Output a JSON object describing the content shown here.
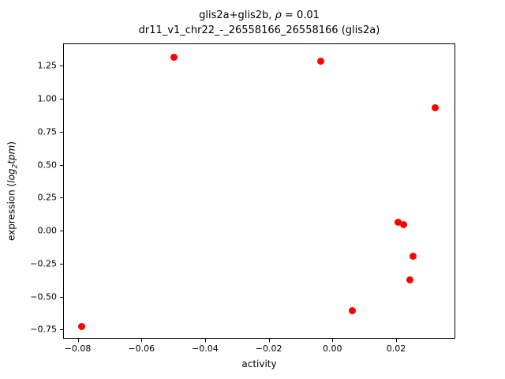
{
  "chart_data": {
    "type": "scatter",
    "title": {
      "prefix": "glis2a+glis2b, ",
      "rho": "ρ",
      "suffix": " = 0.01"
    },
    "subtitle": "dr11_v1_chr22_-_26558166_26558166 (glis2a)",
    "xlabel": "activity",
    "ylabel": {
      "prefix": "expression (",
      "func": "log",
      "sub": "2",
      "var": "tpm",
      "suffix": ")"
    },
    "legend": "none",
    "grid": false,
    "marker_color": "#ff0000",
    "xlim": [
      -0.0846,
      0.0386
    ],
    "ylim": [
      -0.82,
      1.42
    ],
    "xticks": {
      "values": [
        -0.08,
        -0.06,
        -0.04,
        -0.02,
        0.0,
        0.02
      ],
      "labels": [
        "−0.08",
        "−0.06",
        "−0.04",
        "−0.02",
        "0.00",
        "0.02"
      ]
    },
    "yticks": {
      "values": [
        -0.75,
        -0.5,
        -0.25,
        0.0,
        0.25,
        0.5,
        0.75,
        1.0,
        1.25
      ],
      "labels": [
        "−0.75",
        "−0.50",
        "−0.25",
        "0.00",
        "0.25",
        "0.50",
        "0.75",
        "1.00",
        "1.25"
      ]
    },
    "points": [
      [
        -0.079,
        -0.72
      ],
      [
        -0.05,
        1.32
      ],
      [
        -0.004,
        1.29
      ],
      [
        0.032,
        0.94
      ],
      [
        0.0205,
        0.07
      ],
      [
        0.022,
        0.05
      ],
      [
        0.025,
        -0.19
      ],
      [
        0.024,
        -0.37
      ],
      [
        0.006,
        -0.6
      ]
    ],
    "rho_value": 0.01
  }
}
